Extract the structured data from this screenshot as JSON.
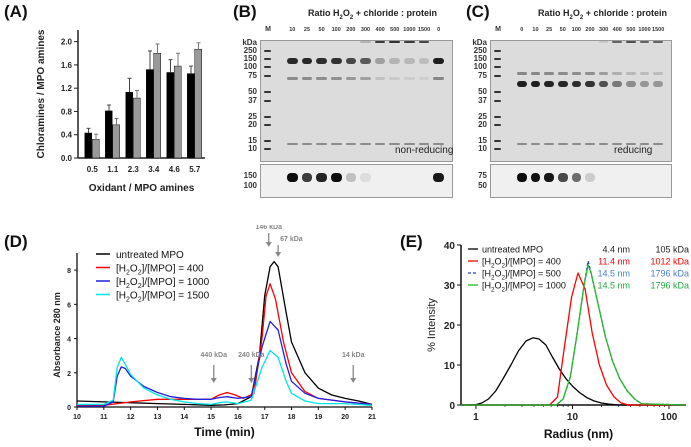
{
  "panels": {
    "A": {
      "label": "(A)"
    },
    "B": {
      "label": "(B)"
    },
    "C": {
      "label": "(C)"
    },
    "D": {
      "label": "(D)"
    },
    "E": {
      "label": "(E)"
    }
  },
  "gel_B": {
    "title_parts": [
      "Ratio H",
      "2",
      "O",
      "2",
      " + chloride : protein"
    ],
    "marker_label": "M",
    "lanes": [
      "10",
      "25",
      "50",
      "100",
      "200",
      "300",
      "400",
      "500",
      "1000",
      "1500",
      "0"
    ],
    "mw_unit": "kDa",
    "mw_markers": [
      "250",
      "150",
      "100",
      "75",
      "50",
      "37",
      "25",
      "20",
      "15",
      "10"
    ],
    "condition": "non-reducing",
    "blot_markers": [
      "150",
      "100"
    ],
    "main_band_intensity": [
      0.9,
      0.9,
      0.88,
      0.85,
      0.75,
      0.65,
      0.3,
      0.2,
      0.18,
      0.15,
      0.95
    ],
    "aggregate_intensity": [
      0,
      0,
      0,
      0,
      0,
      0.2,
      0.8,
      0.85,
      0.8,
      0.75,
      0
    ],
    "blot_intensity": [
      0.95,
      0.75,
      0.85,
      0.95,
      0.2,
      0.08,
      0,
      0,
      0,
      0,
      0.9
    ]
  },
  "gel_C": {
    "title_parts": [
      "Ratio H",
      "2",
      "O",
      "2",
      " + chloride : protein"
    ],
    "marker_label": "M",
    "lanes": [
      "0",
      "10",
      "25",
      "50",
      "100",
      "200",
      "300",
      "400",
      "500",
      "1000",
      "1500"
    ],
    "mw_unit": "kDa",
    "mw_markers": [
      "250",
      "150",
      "100",
      "75",
      "50",
      "37",
      "25",
      "20",
      "15",
      "10"
    ],
    "condition": "reducing",
    "blot_markers": [
      "75",
      "50"
    ],
    "main_band_intensity": [
      0.95,
      0.95,
      0.92,
      0.9,
      0.88,
      0.85,
      0.7,
      0.5,
      0.4,
      0.35,
      0.35
    ],
    "aggregate_intensity": [
      0,
      0,
      0,
      0,
      0,
      0,
      0.1,
      0.6,
      0.7,
      0.6,
      0.6
    ],
    "blot_intensity": [
      0.95,
      0.92,
      0.9,
      0.7,
      0.55,
      0.15,
      0,
      0,
      0,
      0,
      0
    ]
  },
  "chart_data": [
    {
      "id": "A",
      "type": "bar",
      "title": "",
      "xlabel": "Oxidant / MPO amines",
      "ylabel": "Chloramines / MPO amines",
      "categories": [
        "0.5",
        "1.1",
        "2.3",
        "3.4",
        "4.6",
        "5.7"
      ],
      "ylim": [
        0,
        2.2
      ],
      "yticks": [
        "0.0",
        "0.4",
        "0.8",
        "1.2",
        "1.6",
        "2.0"
      ],
      "series": [
        {
          "name": "black",
          "color": "#000000",
          "values": [
            0.43,
            0.81,
            1.13,
            1.52,
            1.47,
            1.45
          ],
          "errors": [
            0.08,
            0.1,
            0.24,
            0.32,
            0.22,
            0.13
          ]
        },
        {
          "name": "gray",
          "color": "#999999",
          "values": [
            0.32,
            0.57,
            1.03,
            1.8,
            1.58,
            1.87
          ],
          "errors": [
            0.09,
            0.11,
            0.13,
            0.16,
            0.22,
            0.11
          ]
        }
      ],
      "legend": "none"
    },
    {
      "id": "D",
      "type": "line",
      "xlabel": "Time (min)",
      "ylabel": "Absorbance 280 nm",
      "xlim": [
        10,
        21
      ],
      "ylim": [
        0,
        9
      ],
      "xticks": [
        "10",
        "11",
        "12",
        "13",
        "14",
        "15",
        "16",
        "17",
        "18",
        "19",
        "20",
        "21"
      ],
      "yticks": [
        "0",
        "2",
        "4",
        "6",
        "8"
      ],
      "legend": "top-left",
      "series": [
        {
          "name": "untreated MPO",
          "legend_parts": [
            "untreated MPO"
          ],
          "color": "#000000",
          "x": [
            10,
            11,
            12,
            13,
            14,
            15,
            15.5,
            16,
            16.5,
            16.8,
            17,
            17.2,
            17.35,
            17.5,
            17.8,
            18,
            18.5,
            19,
            19.5,
            20,
            20.5,
            21
          ],
          "y": [
            0.35,
            0.3,
            0.25,
            0.2,
            0.15,
            0.1,
            0.12,
            0.2,
            0.6,
            3.0,
            6.5,
            8.2,
            8.5,
            8.2,
            5.5,
            3.8,
            2.0,
            1.1,
            0.7,
            0.5,
            0.35,
            0.15
          ]
        },
        {
          "name": "[H2O2]/[MPO] = 400",
          "legend_parts": [
            "[H",
            "2",
            "O",
            "2",
            "]/[MPO] =   400"
          ],
          "color": "#ff0000",
          "x": [
            10,
            11,
            11.5,
            12,
            13,
            14,
            15,
            15.3,
            15.6,
            15.9,
            16.2,
            16.6,
            16.9,
            17.05,
            17.2,
            17.4,
            17.7,
            18,
            18.5,
            19,
            20,
            21
          ],
          "y": [
            0.1,
            0.1,
            0.2,
            0.3,
            0.45,
            0.45,
            0.45,
            0.7,
            0.85,
            0.7,
            0.5,
            0.8,
            4.0,
            6.5,
            7.2,
            6.3,
            3.8,
            2.0,
            0.9,
            0.5,
            0.3,
            0.15
          ]
        },
        {
          "name": "[H2O2]/[MPO] = 1000",
          "legend_parts": [
            "[H",
            "2",
            "O",
            "2",
            "]/[MPO] = 1000"
          ],
          "color": "#2020e0",
          "x": [
            10,
            11,
            11.35,
            11.5,
            11.65,
            11.8,
            12,
            12.5,
            13,
            13.5,
            14,
            14.5,
            15,
            15.3,
            15.6,
            16,
            16.5,
            16.9,
            17.2,
            17.5,
            17.8,
            18,
            18.5,
            19,
            20,
            21
          ],
          "y": [
            0.05,
            0.05,
            0.3,
            1.8,
            2.35,
            2.25,
            1.8,
            1.2,
            0.85,
            0.6,
            0.5,
            0.45,
            0.45,
            0.55,
            0.6,
            0.5,
            0.6,
            3.5,
            5.0,
            4.5,
            2.5,
            1.5,
            0.8,
            0.5,
            0.3,
            0.15
          ]
        },
        {
          "name": "[H2O2]/[MPO] = 1500",
          "legend_parts": [
            "[H",
            "2",
            "O",
            "2",
            "]/[MPO] = 1500"
          ],
          "color": "#00e5e5",
          "x": [
            10,
            11,
            11.35,
            11.5,
            11.65,
            11.8,
            12,
            12.5,
            13,
            13.5,
            14,
            14.5,
            15,
            15.3,
            15.6,
            16,
            16.5,
            16.9,
            17.2,
            17.5,
            17.8,
            18,
            18.5,
            19,
            20,
            21
          ],
          "y": [
            0.15,
            0.15,
            0.4,
            2.3,
            2.9,
            2.5,
            1.9,
            1.1,
            0.7,
            0.45,
            0.3,
            0.2,
            0.15,
            0.25,
            0.3,
            0.2,
            0.4,
            2.3,
            3.3,
            2.9,
            1.5,
            0.8,
            0.35,
            0.2,
            0.2,
            0.1
          ]
        }
      ],
      "annotations": [
        {
          "text": "146 kDa",
          "x": 17.15
        },
        {
          "text": "67 kDa",
          "x": 17.5
        },
        {
          "text": "440 kDa",
          "x": 15.1
        },
        {
          "text": "240 kDa",
          "x": 16.5
        },
        {
          "text": "14 kDa",
          "x": 20.3
        }
      ]
    },
    {
      "id": "E",
      "type": "line",
      "xlabel": "Radius (nm)",
      "ylabel": "% Intensity",
      "xscale": "log",
      "xlim": [
        0.7,
        150
      ],
      "ylim": [
        0,
        40
      ],
      "xticks": [
        "1",
        "10",
        "100"
      ],
      "yticks": [
        "0",
        "10",
        "20",
        "30",
        "40"
      ],
      "legend": "top",
      "series": [
        {
          "name": "untreated MPO",
          "legend_parts": [
            "untreated  MPO"
          ],
          "color": "#000000",
          "dash": false,
          "radius_nm": "4.4 nm",
          "mass": "105 kDa",
          "x": [
            0.7,
            1.0,
            1.15,
            1.35,
            1.6,
            1.9,
            2.3,
            2.75,
            3.3,
            3.9,
            4.5,
            5.3,
            6.2,
            7.3,
            8.6,
            10.2,
            12,
            14.2,
            16.8,
            20,
            24,
            30,
            40,
            150
          ],
          "y": [
            0,
            0.1,
            0.5,
            1.5,
            3.5,
            6.5,
            10,
            13.5,
            16,
            16.8,
            16.5,
            15,
            12,
            9,
            6.5,
            4.5,
            3,
            1.8,
            1,
            0.5,
            0.2,
            0,
            0,
            0
          ]
        },
        {
          "name": "[H2O2]/[MPO] = 400",
          "legend_parts": [
            "[H",
            "2",
            "O",
            "2",
            "]/[MPO] =   400"
          ],
          "color": "#ff0000",
          "dash": false,
          "radius_nm": "11.4 nm",
          "mass": "1012 kDa",
          "x": [
            0.7,
            5.8,
            7.0,
            8.3,
            9.8,
            11.4,
            13.5,
            16,
            19,
            22.5,
            27,
            32,
            38,
            150
          ],
          "y": [
            0,
            0,
            2,
            15,
            27,
            33,
            29,
            18,
            10,
            5,
            2,
            0.5,
            0,
            0
          ]
        },
        {
          "name": "[H2O2]/[MPO] = 500",
          "legend_parts": [
            "[H",
            "2",
            "O",
            "2",
            "]/[MPO] =   500"
          ],
          "color": "#2040d0",
          "dash": true,
          "radius_nm": "14.5 nm",
          "mass": "1796 kDa",
          "x": [
            0.7,
            6.8,
            8.0,
            9.5,
            11.2,
            13.2,
            14.5,
            15.6,
            18.5,
            22,
            26,
            31,
            37,
            44,
            52,
            150
          ],
          "y": [
            0,
            0,
            1.5,
            7,
            18,
            30,
            36,
            33,
            25,
            17,
            11,
            6.5,
            3.5,
            1.5,
            0.3,
            0
          ]
        },
        {
          "name": "[H2O2]/[MPO] = 1000",
          "legend_parts": [
            "[H",
            "2",
            "O",
            "2",
            "]/[MPO] = 1000"
          ],
          "color": "#22bb22",
          "dash": false,
          "radius_nm": "14.5 nm",
          "mass": "1796 kDa",
          "x": [
            0.7,
            6.8,
            8.0,
            9.5,
            11.2,
            13.2,
            14.5,
            15.6,
            18.5,
            22,
            26,
            31,
            37,
            44,
            52,
            150
          ],
          "y": [
            0,
            0,
            1.5,
            7,
            18,
            30,
            35,
            33,
            25,
            17,
            11,
            6.5,
            3.5,
            1.5,
            0.3,
            0
          ]
        }
      ],
      "legend_info_colors": [
        "#222222",
        "#ff0000",
        "#4a7fd4",
        "#22aa44"
      ]
    }
  ]
}
